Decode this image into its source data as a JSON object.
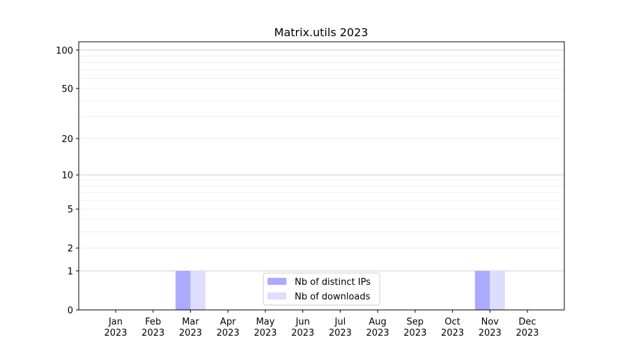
{
  "chart_data": {
    "type": "bar",
    "title": "Matrix.utils 2023",
    "xlabel": "",
    "ylabel": "",
    "yscale": "log(1+y)",
    "ylim": [
      0,
      116
    ],
    "yticks": [
      0,
      1,
      2,
      5,
      10,
      20,
      50,
      100
    ],
    "grid": "y major and minor",
    "categories": [
      "Jan\n2023",
      "Feb\n2023",
      "Mar\n2023",
      "Apr\n2023",
      "May\n2023",
      "Jun\n2023",
      "Jul\n2023",
      "Aug\n2023",
      "Sep\n2023",
      "Oct\n2023",
      "Nov\n2023",
      "Dec\n2023"
    ],
    "series": [
      {
        "name": "Nb of distinct IPs",
        "color": "#aaaaff",
        "values": [
          0,
          0,
          1,
          0,
          0,
          0,
          0,
          0,
          0,
          0,
          1,
          0
        ]
      },
      {
        "name": "Nb of downloads",
        "color": "#ddddff",
        "values": [
          0,
          0,
          1,
          0,
          0,
          0,
          0,
          0,
          0,
          0,
          1,
          0
        ]
      }
    ],
    "legend_placement": "lower center"
  }
}
